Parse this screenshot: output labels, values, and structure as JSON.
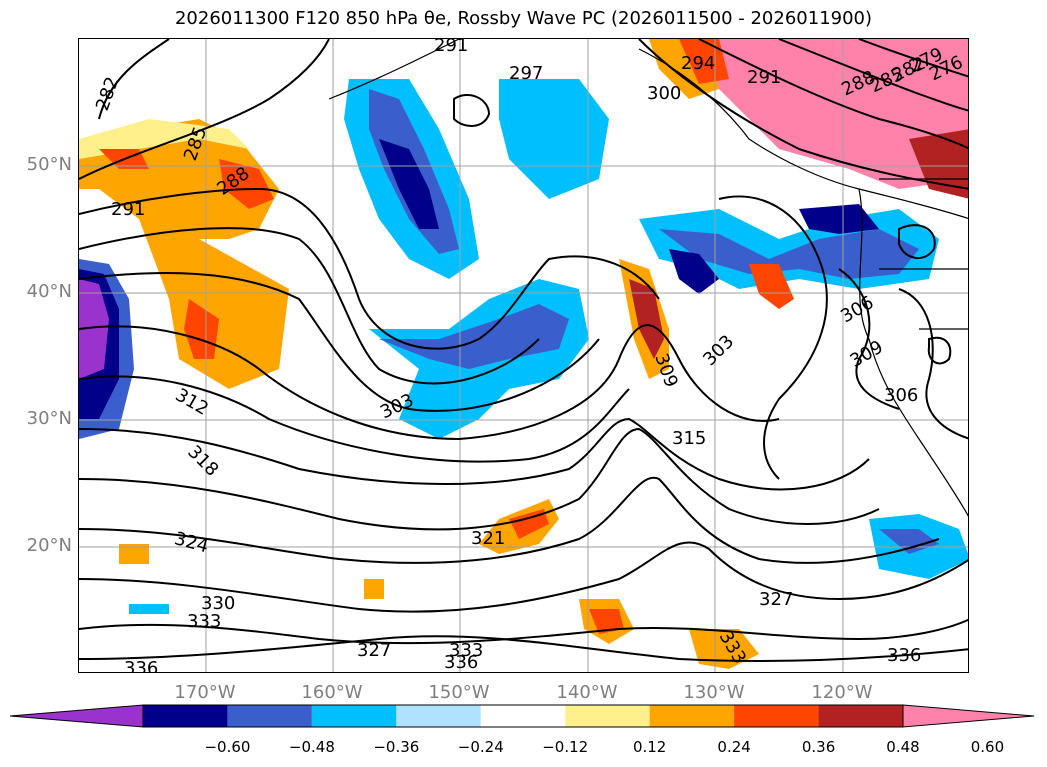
{
  "title": "2026011300 F120 850 hPa θe, Rossby Wave PC (2026011500 - 2026011900)",
  "axes": {
    "lat_labels": [
      "50°N",
      "40°N",
      "30°N",
      "20°N"
    ],
    "lon_labels": [
      "170°W",
      "160°W",
      "150°W",
      "140°W",
      "130°W",
      "120°W"
    ]
  },
  "colorbar": {
    "ticks": [
      "−0.60",
      "−0.48",
      "−0.36",
      "−0.24",
      "−0.12",
      "0.12",
      "0.24",
      "0.36",
      "0.48",
      "0.60"
    ],
    "colors": [
      "#9a32cd",
      "#00008b",
      "#3a5fcd",
      "#00bfff",
      "#b0e2ff",
      "#ffffff",
      "#fff08b",
      "#ffa500",
      "#ff4500",
      "#b22222",
      "#ff82ab"
    ],
    "extend": "both"
  },
  "contours": {
    "labels": [
      "282",
      "285",
      "288",
      "291",
      "294",
      "297",
      "300",
      "303",
      "306",
      "309",
      "312",
      "315",
      "318",
      "321",
      "324",
      "327",
      "330",
      "333",
      "336",
      "276",
      "279"
    ],
    "label_positions_text": [
      {
        "t": "282"
      },
      {
        "t": "285"
      },
      {
        "t": "288"
      },
      {
        "t": "291"
      },
      {
        "t": "291"
      },
      {
        "t": "291"
      },
      {
        "t": "294"
      },
      {
        "t": "297"
      },
      {
        "t": "300"
      },
      {
        "t": "303"
      },
      {
        "t": "303"
      },
      {
        "t": "306"
      },
      {
        "t": "306"
      },
      {
        "t": "309"
      },
      {
        "t": "309"
      },
      {
        "t": "312"
      },
      {
        "t": "315"
      },
      {
        "t": "318"
      },
      {
        "t": "321"
      },
      {
        "t": "324"
      },
      {
        "t": "327"
      },
      {
        "t": "327"
      },
      {
        "t": "330"
      },
      {
        "t": "333"
      },
      {
        "t": "333"
      },
      {
        "t": "333"
      },
      {
        "t": "336"
      },
      {
        "t": "336"
      },
      {
        "t": "336"
      },
      {
        "t": "288"
      },
      {
        "t": "285"
      },
      {
        "t": "282"
      },
      {
        "t": "279"
      },
      {
        "t": "276"
      }
    ]
  },
  "colors": {
    "frame": "#000000",
    "grid": "#a0a0a0",
    "contour": "#000000",
    "axis_label": "#7f7f7f"
  }
}
